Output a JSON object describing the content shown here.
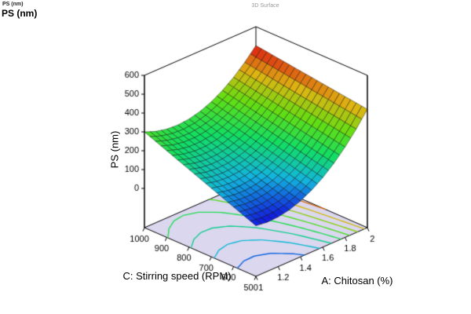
{
  "header": {
    "mini_label": "PS (nm)",
    "response_label": "PS (nm)"
  },
  "chart_data": {
    "type": "surface3d",
    "title": "3D Surface",
    "z_axis": {
      "label": "PS (nm)",
      "ticks": [
        0,
        100,
        200,
        300,
        400,
        500,
        600
      ],
      "min": 0,
      "max": 600
    },
    "x_axis": {
      "label": "A: Chitosan (%)",
      "ticks": [
        1,
        1.2,
        1.4,
        1.6,
        1.8,
        2
      ],
      "min": 1,
      "max": 2
    },
    "y_axis": {
      "label": "C: Stirring speed (RPM)",
      "ticks": [
        1000,
        900,
        800,
        700,
        600,
        500
      ],
      "min": 500,
      "max": 1000
    },
    "surface": {
      "a_values": [
        1,
        1.1,
        1.2,
        1.3,
        1.4,
        1.5,
        1.6,
        1.7,
        1.8,
        1.9,
        2
      ],
      "c_values": [
        500,
        550,
        600,
        650,
        700,
        750,
        800,
        850,
        900,
        950,
        1000
      ],
      "z_grid": [
        [
          60,
          52.8,
          55.2,
          67.2,
          88.8,
          120,
          160.8,
          211.2,
          271.2,
          340.8,
          420
        ],
        [
          84,
          75.2,
          76,
          86.4,
          106.4,
          136,
          175.2,
          224,
          282.4,
          350.4,
          428
        ],
        [
          108,
          97.6,
          96.8,
          105.6,
          124,
          152,
          189.6,
          236.8,
          293.6,
          360,
          436
        ],
        [
          132,
          120,
          117.6,
          124.8,
          141.6,
          168,
          204,
          249.6,
          304.8,
          369.6,
          444
        ],
        [
          156,
          142.4,
          138.4,
          144,
          159.2,
          184,
          218.4,
          262.4,
          316,
          379.2,
          452
        ],
        [
          180,
          164.8,
          159.2,
          163.2,
          176.8,
          200,
          232.8,
          275.2,
          327.2,
          388.8,
          460
        ],
        [
          204,
          187.2,
          180,
          182.4,
          194.4,
          216,
          247.2,
          288,
          338.4,
          398.4,
          468
        ],
        [
          228,
          209.6,
          200.8,
          201.6,
          212,
          232,
          261.6,
          300.8,
          349.6,
          408,
          476
        ],
        [
          252,
          232,
          221.6,
          220.8,
          229.6,
          248,
          276,
          313.6,
          360.8,
          417.6,
          484
        ],
        [
          276,
          254.4,
          242.4,
          240,
          247.2,
          264,
          290.4,
          326.4,
          372,
          427.2,
          492
        ],
        [
          300,
          276.8,
          263.2,
          259.2,
          264.8,
          280,
          304.8,
          339.2,
          383.2,
          436.8,
          500
        ]
      ]
    },
    "contour_levels": [
      100,
      150,
      200,
      250,
      300,
      350,
      400,
      450
    ],
    "colors": {
      "gradient": [
        "#1212DE",
        "#12B5DE",
        "#12DE63",
        "#63DE12",
        "#DEB512",
        "#DE1212"
      ],
      "floor_fill": "#DBD7EF",
      "mesh_line": "#000000",
      "background": "#FFFFFF"
    }
  }
}
